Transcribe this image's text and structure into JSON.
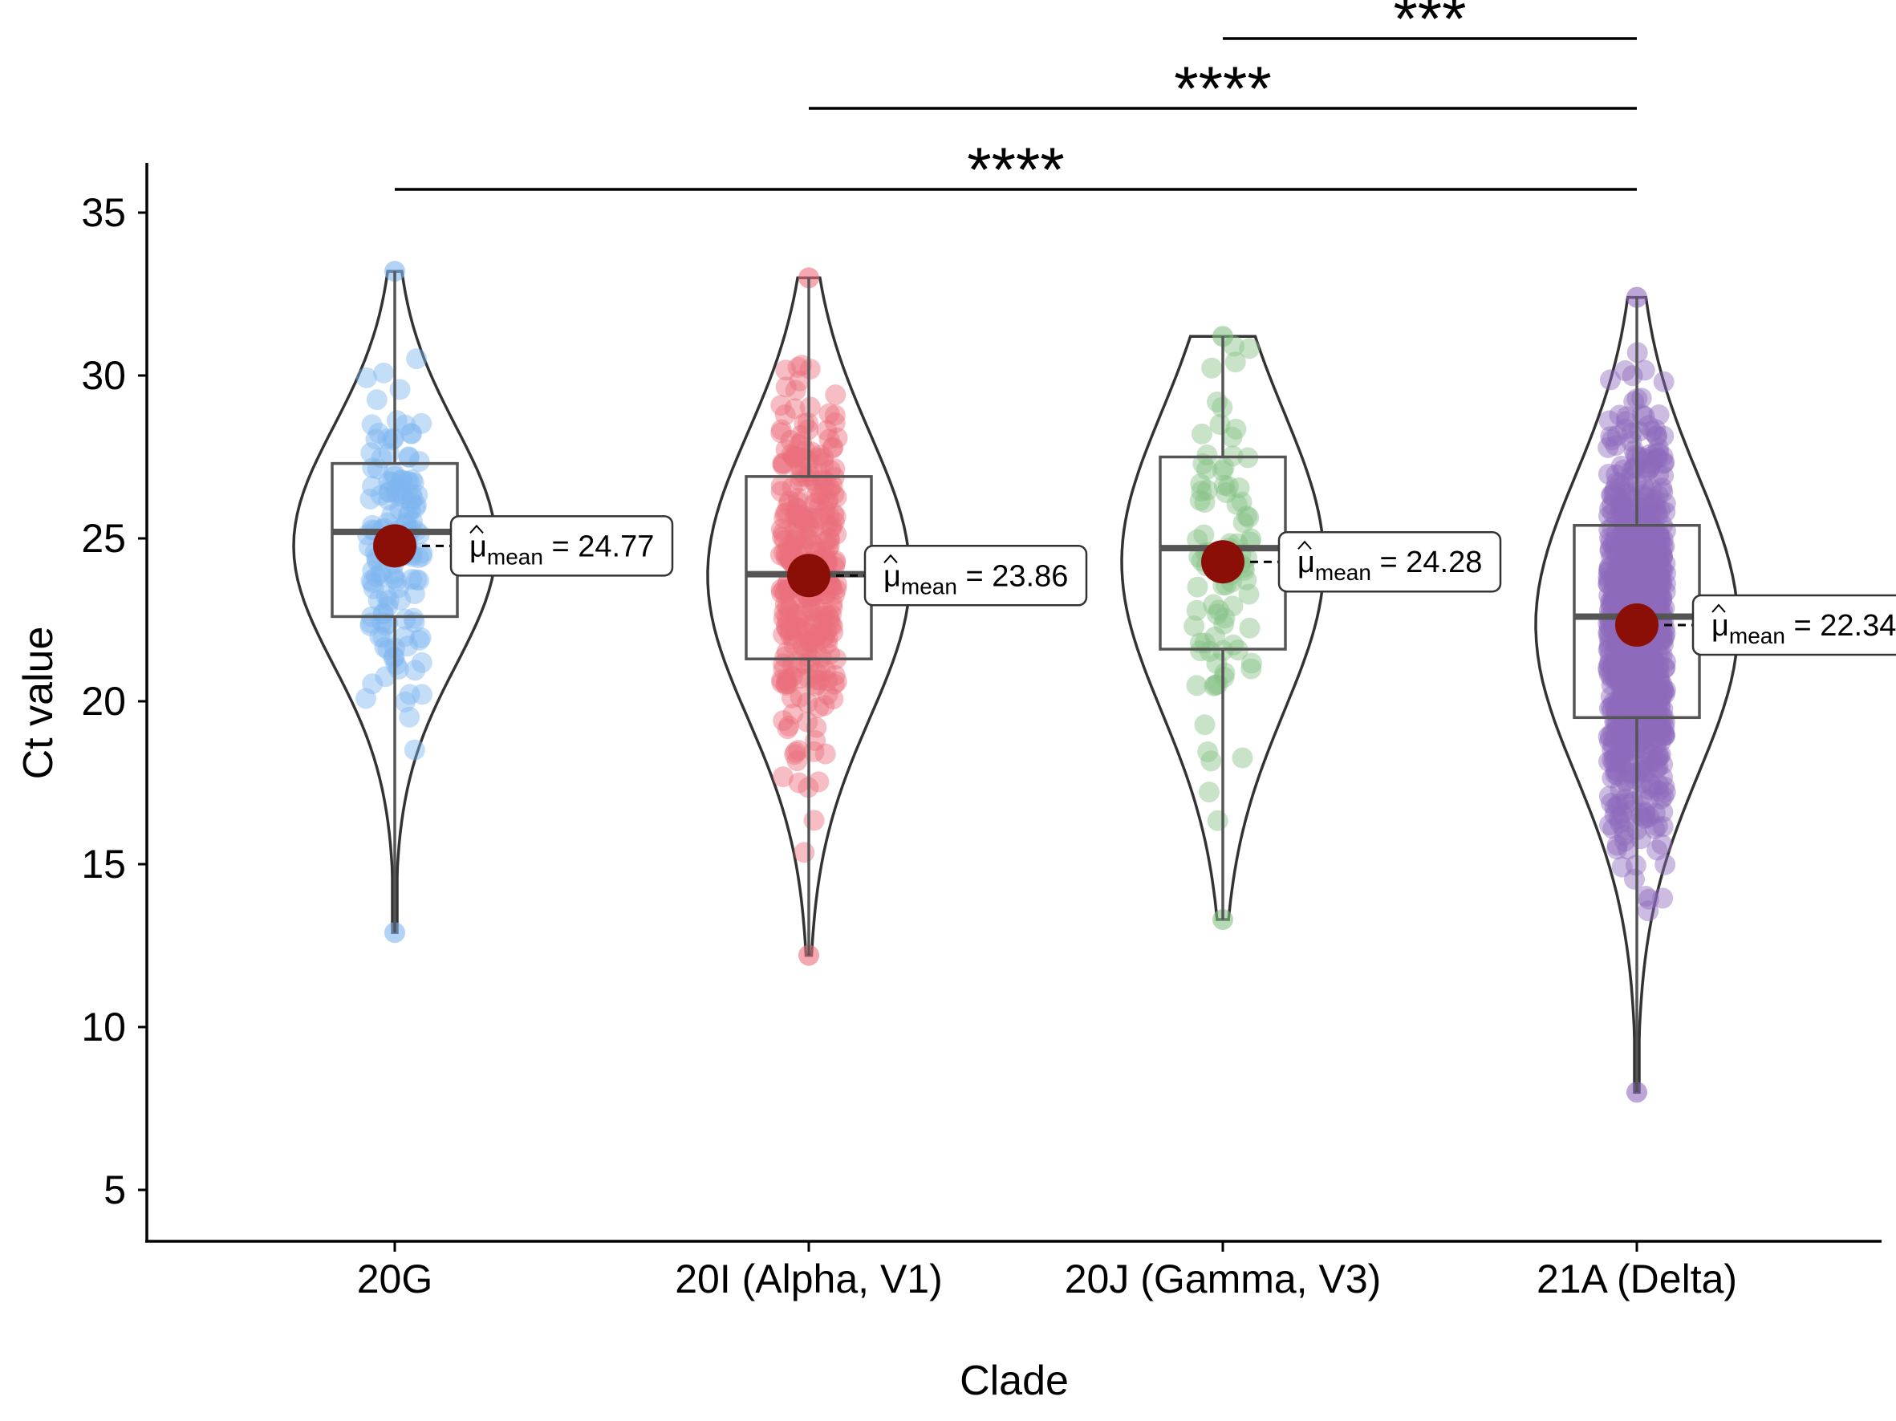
{
  "chart_data": {
    "type": "violin",
    "xlabel": "Clade",
    "ylabel": "Ct value",
    "ylim": [
      3.5,
      36.5
    ],
    "yticks": [
      5,
      10,
      15,
      20,
      25,
      30,
      35
    ],
    "grid": false,
    "legend": "none",
    "categories": [
      "20G",
      "20I (Alpha, V1)",
      "20J (Gamma, V3)",
      "21A (Delta)"
    ],
    "colors": [
      "#7fb6f0",
      "#ec6f7c",
      "#86c286",
      "#8f6bbd"
    ],
    "mean_color": "#8b0f06",
    "series": [
      {
        "category": "20G",
        "min": 12.9,
        "q1": 22.6,
        "median": 25.2,
        "q3": 27.3,
        "max": 33.2,
        "mean": 24.77,
        "mean_label": "24.77",
        "n_points": 150
      },
      {
        "category": "20I (Alpha, V1)",
        "min": 12.2,
        "q1": 21.3,
        "median": 23.9,
        "q3": 26.9,
        "max": 33.0,
        "mean": 23.86,
        "mean_label": "23.86",
        "n_points": 320
      },
      {
        "category": "20J (Gamma, V3)",
        "min": 13.3,
        "q1": 21.6,
        "median": 24.7,
        "q3": 27.5,
        "max": 31.2,
        "mean": 24.28,
        "mean_label": "24.28",
        "n_points": 90
      },
      {
        "category": "21A (Delta)",
        "min": 8.0,
        "q1": 19.5,
        "median": 22.6,
        "q3": 25.4,
        "max": 32.4,
        "mean": 22.34,
        "mean_label": "22.34",
        "n_points": 900
      }
    ],
    "mean_prefix": "μ",
    "mean_subscript": "mean",
    "mean_equals": " = ",
    "comparisons": [
      {
        "from": "20G",
        "to": "21A (Delta)",
        "label": "****"
      },
      {
        "from": "20I (Alpha, V1)",
        "to": "21A (Delta)",
        "label": "****"
      },
      {
        "from": "20J (Gamma, V3)",
        "to": "21A (Delta)",
        "label": "***"
      }
    ]
  }
}
